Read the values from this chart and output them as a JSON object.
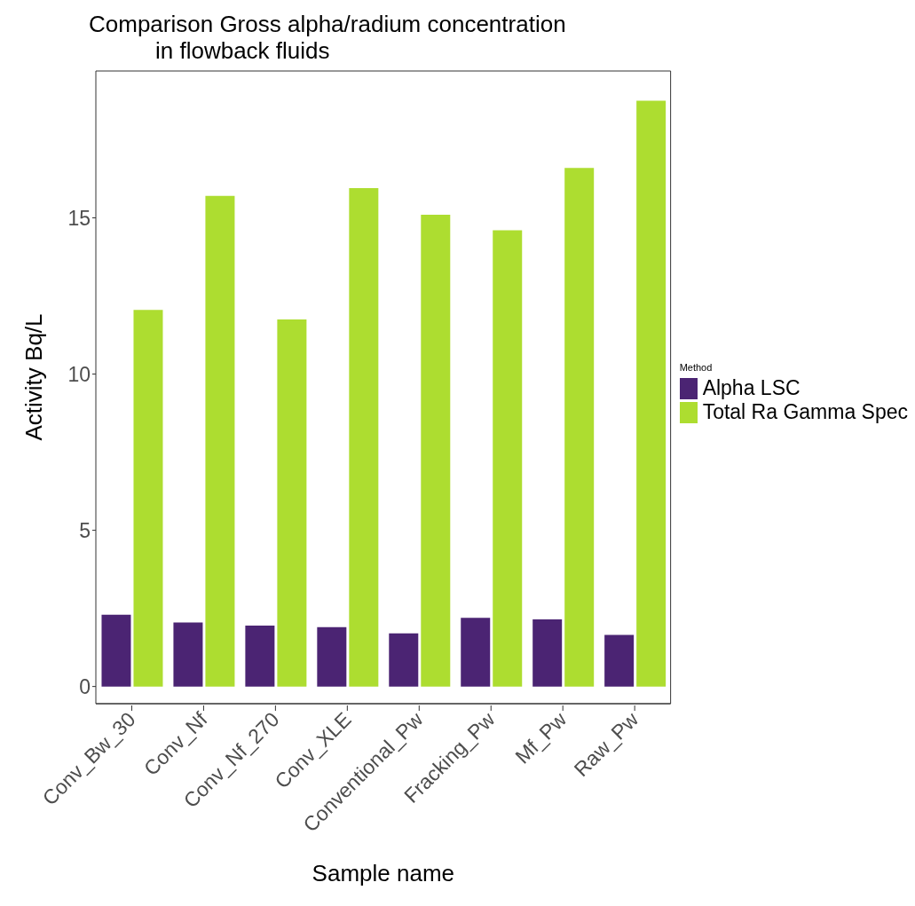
{
  "chart_data": {
    "type": "bar",
    "title": "Comparison Gross alpha/radium concentration in flowback fluids",
    "xlabel": "Sample name",
    "ylabel": "Activity Bq/L",
    "legend_title": "Method",
    "categories": [
      "Conv_Bw_30",
      "Conv_Nf",
      "Conv_Nf_270",
      "Conv_XLE",
      "Conventional_Pw",
      "Fracking_Pw",
      "Mf_Pw",
      "Raw_Pw"
    ],
    "series": [
      {
        "name": "Alpha LSC",
        "color": "#4b2473",
        "values": [
          2.3,
          2.05,
          1.95,
          1.9,
          1.7,
          2.2,
          2.15,
          1.65
        ]
      },
      {
        "name": "Total Ra Gamma Spec",
        "color": "#addd30",
        "values": [
          12.05,
          15.7,
          11.75,
          15.95,
          15.1,
          14.6,
          16.6,
          18.75
        ]
      }
    ],
    "ylim": [
      -0.55,
      19.7
    ],
    "yticks": [
      0,
      5,
      10,
      15
    ],
    "legend": "right"
  }
}
